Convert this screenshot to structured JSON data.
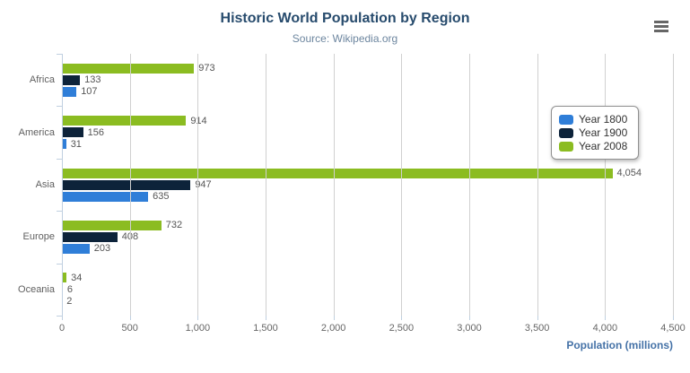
{
  "header": {
    "title": "Historic World Population by Region",
    "subtitle": "Source: Wikipedia.org"
  },
  "icons": {
    "context_menu": "hamburger-menu-icon"
  },
  "colors": {
    "title": "#274b6d",
    "subtitle": "#6d869f",
    "axis_title": "#4572a7",
    "tick_label": "#666666",
    "category_label": "#606060",
    "data_label": "#555555",
    "gridline": "#d0d0d0",
    "axis_line": "#c0d0e0",
    "legend_border": "#909090",
    "menu_icon": "#666666",
    "series": [
      "#2f7ed8",
      "#0d233a",
      "#8bbc21"
    ]
  },
  "chart_data": {
    "type": "bar",
    "orientation": "horizontal",
    "title": "Historic World Population by Region",
    "subtitle": "Source: Wikipedia.org",
    "categories": [
      "Africa",
      "America",
      "Asia",
      "Europe",
      "Oceania"
    ],
    "series": [
      {
        "name": "Year 1800",
        "color": "#2f7ed8",
        "values": [
          107,
          31,
          635,
          203,
          2
        ]
      },
      {
        "name": "Year 1900",
        "color": "#0d233a",
        "values": [
          133,
          156,
          947,
          408,
          6
        ]
      },
      {
        "name": "Year 2008",
        "color": "#8bbc21",
        "values": [
          973,
          914,
          4054,
          732,
          34
        ]
      }
    ],
    "bar_order_top_to_bottom": [
      "Year 2008",
      "Year 1900",
      "Year 1800"
    ],
    "data_labels": [
      [
        "107",
        "31",
        "635",
        "203",
        "2"
      ],
      [
        "133",
        "156",
        "947",
        "408",
        "6"
      ],
      [
        "973",
        "914",
        "4,054",
        "732",
        "34"
      ]
    ],
    "xlabel": "Population (millions)",
    "xlim": [
      0,
      4500
    ],
    "x_ticks": [
      "0",
      "500",
      "1,000",
      "1,500",
      "2,000",
      "2,500",
      "3,000",
      "3,500",
      "4,000",
      "4,500"
    ],
    "grid": true,
    "legend_position": "right",
    "legend": [
      "Year 1800",
      "Year 1900",
      "Year 2008"
    ]
  }
}
